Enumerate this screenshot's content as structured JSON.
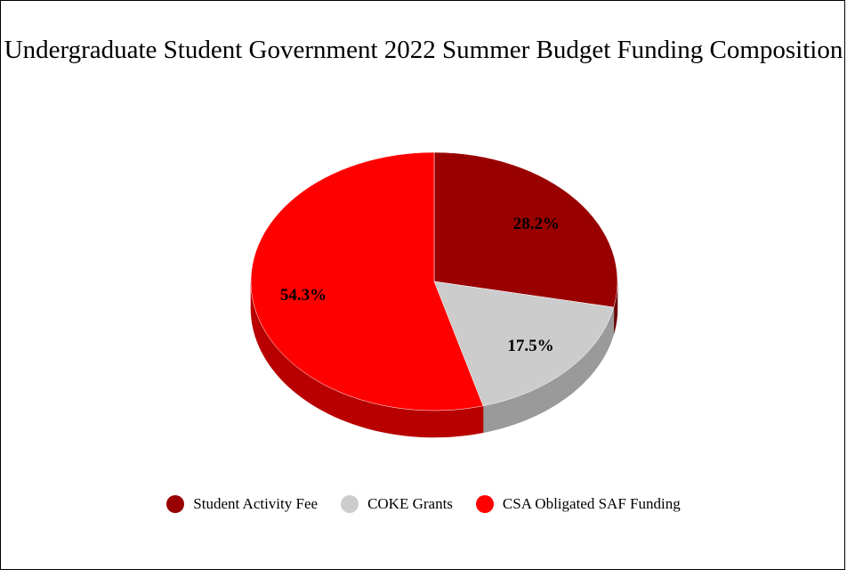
{
  "chart_data": {
    "type": "pie",
    "title": "Undergraduate Student Government 2022 Summer Budget Funding Composition",
    "three_d": true,
    "legend_position": "bottom",
    "slices": [
      {
        "label": "Student Activity Fee",
        "value": 28.2,
        "display": "28.2%",
        "color": "#990000",
        "side_color": "#6b0000"
      },
      {
        "label": "COKE Grants",
        "value": 17.5,
        "display": "17.5%",
        "color": "#cccccc",
        "side_color": "#9a9a9a"
      },
      {
        "label": "CSA Obligated SAF Funding",
        "value": 54.3,
        "display": "54.3%",
        "color": "#ff0000",
        "side_color": "#b80000"
      }
    ]
  }
}
